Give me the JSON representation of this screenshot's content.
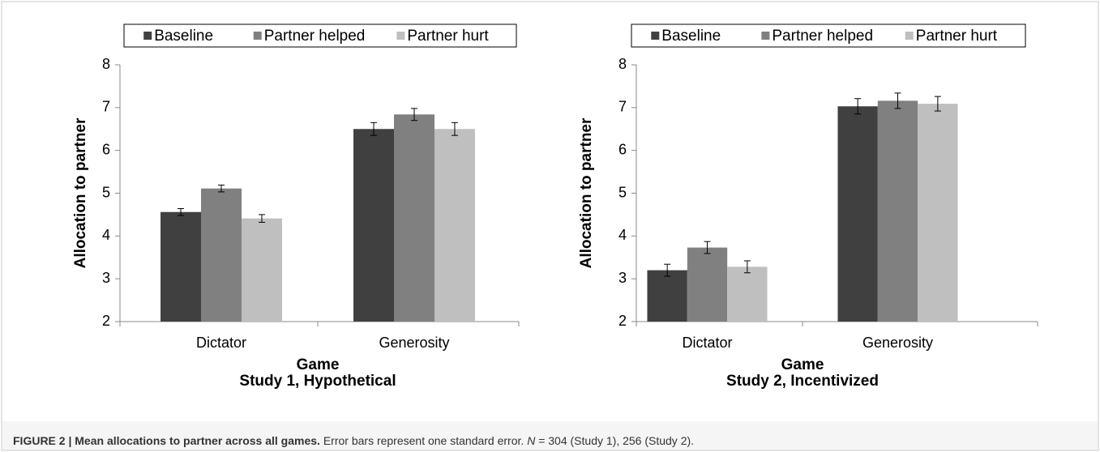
{
  "chart_data": [
    {
      "type": "bar",
      "title": "Study 1, Hypothetical",
      "xlabel": "Game",
      "ylabel": "Allocation to partner",
      "categories": [
        "Dictator",
        "Generosity"
      ],
      "series": [
        {
          "name": "Baseline",
          "color": "#404040",
          "values": [
            4.56,
            6.5
          ],
          "errors": [
            0.08,
            0.15
          ]
        },
        {
          "name": "Partner helped",
          "color": "#808080",
          "values": [
            5.11,
            6.84
          ],
          "errors": [
            0.08,
            0.14
          ]
        },
        {
          "name": "Partner hurt",
          "color": "#bfbfbf",
          "values": [
            4.41,
            6.5
          ],
          "errors": [
            0.09,
            0.15
          ]
        }
      ],
      "ylim": [
        2,
        8
      ],
      "yticks": [
        2,
        3,
        4,
        5,
        6,
        7,
        8
      ],
      "legend": "top"
    },
    {
      "type": "bar",
      "title": "Study 2, Incentivized",
      "xlabel": "Game",
      "ylabel": "Allocation to partner",
      "categories": [
        "Dictator",
        "Generosity"
      ],
      "series": [
        {
          "name": "Baseline",
          "color": "#404040",
          "values": [
            3.2,
            7.03
          ],
          "errors": [
            0.14,
            0.18
          ]
        },
        {
          "name": "Partner helped",
          "color": "#808080",
          "values": [
            3.73,
            7.16
          ],
          "errors": [
            0.14,
            0.18
          ]
        },
        {
          "name": "Partner hurt",
          "color": "#bfbfbf",
          "values": [
            3.28,
            7.09
          ],
          "errors": [
            0.14,
            0.17
          ]
        }
      ],
      "ylim": [
        2,
        8
      ],
      "yticks": [
        2,
        3,
        4,
        5,
        6,
        7,
        8
      ],
      "legend": "top"
    }
  ],
  "caption": {
    "label": "FIGURE 2 | Mean allocations to partner across all games.",
    "text": "Error bars represent one standard error.",
    "n": "N",
    "rest": "= 304 (Study 1), 256 (Study 2)."
  }
}
